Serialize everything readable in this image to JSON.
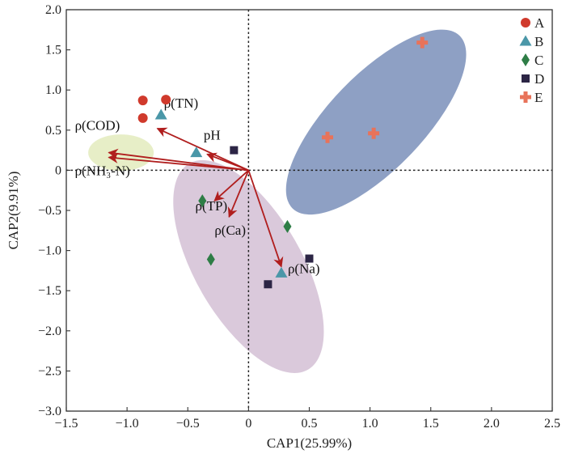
{
  "chart_data": {
    "type": "scatter",
    "title": "",
    "xlabel": "CAP1(25.99%)",
    "ylabel": "CAP2(9.91%)",
    "xlim": [
      -1.5,
      2.5
    ],
    "ylim": [
      -3.0,
      2.0
    ],
    "xticks": [
      -1.5,
      -1.0,
      -0.5,
      0,
      0.5,
      1.0,
      1.5,
      2.0,
      2.5
    ],
    "xtick_labels": [
      "−1.5",
      "−1.0",
      "−0.5",
      "0",
      "0.5",
      "1.0",
      "1.5",
      "2.0",
      "2.5"
    ],
    "yticks": [
      2.0,
      1.5,
      1.0,
      0.5,
      0,
      -0.5,
      -1.0,
      -1.5,
      -2.0,
      -2.5,
      -3.0
    ],
    "ytick_labels": [
      "2.0",
      "1.5",
      "1.0",
      "0.5",
      "0",
      "−0.5",
      "−1.0",
      "−1.5",
      "−2.0",
      "−2.5",
      "−3.0"
    ],
    "grid": false,
    "legend_position": "top-right",
    "reference_lines": {
      "x": 0,
      "y": 0,
      "style": "dotted"
    },
    "series": [
      {
        "name": "A",
        "marker": "circle",
        "color": "#d03a2c",
        "points": [
          [
            -0.87,
            0.87
          ],
          [
            -0.68,
            0.88
          ],
          [
            -0.87,
            0.65
          ]
        ]
      },
      {
        "name": "B",
        "marker": "triangle",
        "color": "#4a97a8",
        "points": [
          [
            -0.72,
            0.69
          ],
          [
            -0.43,
            0.22
          ],
          [
            0.27,
            -1.28
          ]
        ]
      },
      {
        "name": "C",
        "marker": "diamond",
        "color": "#2e7d46",
        "points": [
          [
            -0.38,
            -0.38
          ],
          [
            0.32,
            -0.7
          ],
          [
            -0.31,
            -1.11
          ]
        ]
      },
      {
        "name": "D",
        "marker": "square",
        "color": "#2c2545",
        "points": [
          [
            -0.12,
            0.25
          ],
          [
            0.5,
            -1.1
          ],
          [
            0.16,
            -1.42
          ]
        ]
      },
      {
        "name": "E",
        "marker": "cross",
        "color": "#e8735a",
        "points": [
          [
            1.43,
            1.59
          ],
          [
            0.65,
            0.41
          ],
          [
            1.03,
            0.46
          ]
        ]
      }
    ],
    "vectors": [
      {
        "label": "ρ(COD)",
        "end": [
          -1.15,
          0.22
        ]
      },
      {
        "label": "ρ(NH₃-N)",
        "end": [
          -1.15,
          0.16
        ]
      },
      {
        "label": "ρ(TN)",
        "end": [
          -0.75,
          0.52
        ]
      },
      {
        "label": "pH",
        "end": [
          -0.34,
          0.2
        ]
      },
      {
        "label": "ρ(TP)",
        "end": [
          -0.28,
          -0.38
        ]
      },
      {
        "label": "ρ(Ca)",
        "end": [
          -0.16,
          -0.58
        ]
      },
      {
        "label": "ρ(Na)",
        "end": [
          0.27,
          -1.2
        ]
      }
    ],
    "ellipses": [
      {
        "group": "E",
        "color": "#7a8fba",
        "center": [
          1.05,
          0.6
        ],
        "rx": 0.99,
        "ry": 0.39,
        "angle_deg": 46
      },
      {
        "group": "C/D",
        "color": "#d4bfd5",
        "center": [
          0.0,
          -1.2
        ],
        "rx": 0.98,
        "ry": 0.44,
        "angle_deg": -60
      },
      {
        "group": "A",
        "color": "#e3ebbd",
        "center": [
          -1.05,
          0.22
        ],
        "rx": 0.27,
        "ry": 0.15,
        "angle_deg": 0
      }
    ]
  }
}
